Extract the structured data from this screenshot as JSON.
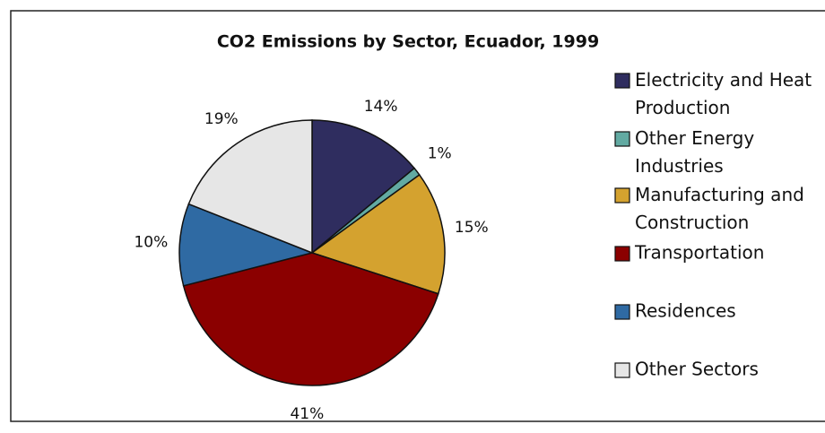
{
  "chart_data": {
    "type": "pie",
    "title": "CO2 Emissions by Sector, Ecuador, 1999",
    "categories": [
      "Electricity and Heat Production",
      "Other Energy Industries",
      "Manufacturing and Construction",
      "Transportation",
      "Residences",
      "Other Sectors"
    ],
    "values": [
      14,
      1,
      15,
      41,
      10,
      19
    ],
    "value_labels": [
      "14%",
      "1%",
      "15%",
      "41%",
      "10%",
      "19%"
    ],
    "colors": [
      "#2f2d5f",
      "#62aaa2",
      "#d4a22f",
      "#8b0000",
      "#2f6aa3",
      "#e6e6e6"
    ],
    "legend": "right"
  }
}
